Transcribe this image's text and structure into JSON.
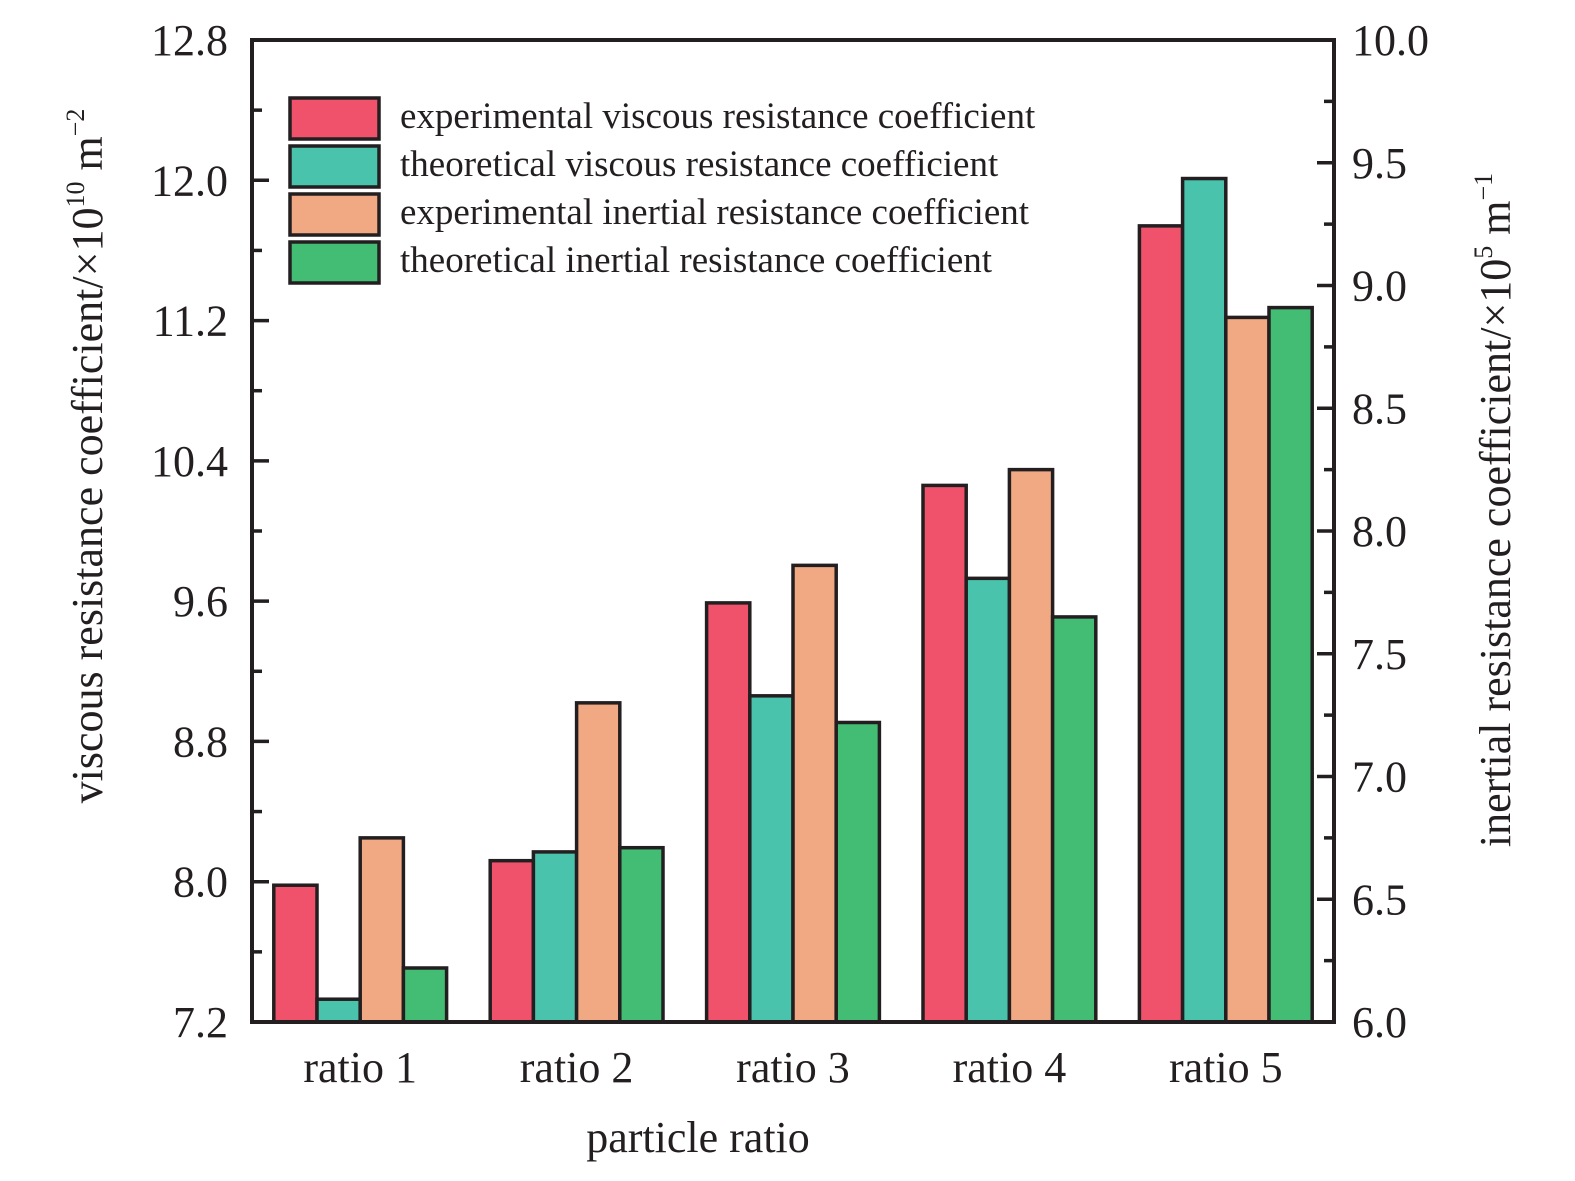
{
  "chart_data": {
    "type": "bar",
    "xlabel": "particle ratio",
    "categories": [
      "ratio 1",
      "ratio 2",
      "ratio 3",
      "ratio 4",
      "ratio 5"
    ],
    "y_left": {
      "label_main": "viscous resistance coefficient/×10",
      "label_exp": "10",
      "label_unit": " m",
      "label_unit_exp": "−2",
      "range": [
        7.2,
        12.8
      ],
      "ticks": [
        "7.2",
        "8.0",
        "8.8",
        "9.6",
        "10.4",
        "11.2",
        "12.0",
        "12.8"
      ]
    },
    "y_right": {
      "label_main": "inertial resistance coefficient/×10",
      "label_exp": "5",
      "label_unit": " m",
      "label_unit_exp": "−1",
      "range": [
        6.0,
        10.0
      ],
      "ticks": [
        "6.0",
        "6.5",
        "7.0",
        "7.5",
        "8.0",
        "8.5",
        "9.0",
        "9.5",
        "10.0"
      ]
    },
    "series": [
      {
        "name": "experimental viscous resistance coefficient",
        "axis": "left",
        "color": "#f0526c",
        "values": [
          7.98,
          8.12,
          9.59,
          10.26,
          11.74
        ]
      },
      {
        "name": "theoretical viscous resistance coefficient",
        "axis": "left",
        "color": "#4ac3ac",
        "values": [
          7.33,
          8.17,
          9.06,
          9.73,
          12.01
        ]
      },
      {
        "name": "experimental inertial resistance coefficient",
        "axis": "right",
        "color": "#f0a983",
        "values": [
          6.75,
          7.3,
          7.86,
          8.25,
          8.87
        ]
      },
      {
        "name": "theoretical inertial resistance coefficient",
        "axis": "right",
        "color": "#43bc74",
        "values": [
          6.22,
          6.71,
          7.22,
          7.65,
          8.91
        ]
      }
    ],
    "legend_position": "top-left",
    "grid": false
  }
}
